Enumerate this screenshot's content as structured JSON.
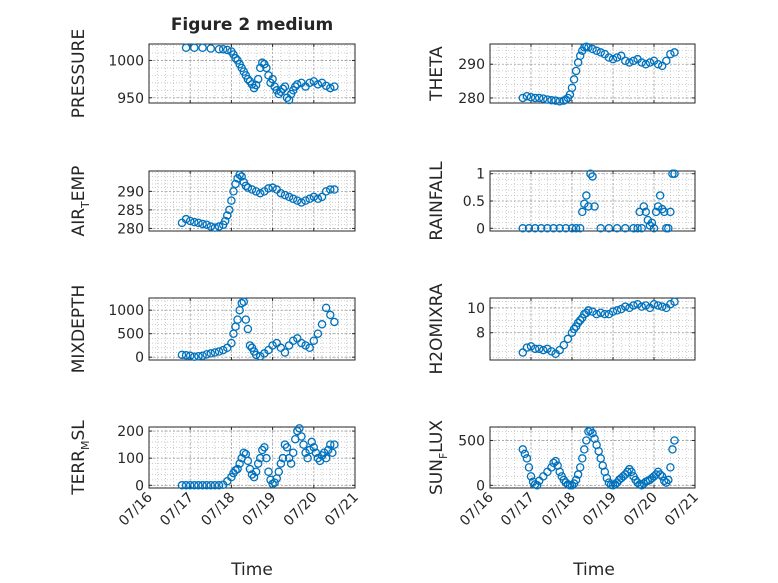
{
  "figure": {
    "title": "Figure 2 medium"
  },
  "theme": {
    "marker_color": "#0072BD",
    "axis_color": "#262626",
    "grid_color": "#b0b0b0"
  },
  "chart_data": [
    {
      "type": "scatter",
      "ylabel": "PRESSURE",
      "ylim": [
        943,
        1022
      ],
      "yticks": [
        950,
        1000
      ],
      "ytick_labels": [
        "950",
        "1000"
      ],
      "minor_grid_step": 10,
      "grid": true,
      "x": [
        16.9,
        17.1,
        17.3,
        17.5,
        17.7,
        17.8,
        17.9,
        18.0,
        18.05,
        18.1,
        18.15,
        18.2,
        18.25,
        18.3,
        18.35,
        18.4,
        18.45,
        18.5,
        18.55,
        18.6,
        18.65,
        18.7,
        18.75,
        18.8,
        18.85,
        18.9,
        18.95,
        19.0,
        19.05,
        19.1,
        19.15,
        19.2,
        19.25,
        19.3,
        19.35,
        19.4,
        19.45,
        19.5,
        19.55,
        19.6,
        19.7,
        19.8,
        19.9,
        20.0,
        20.1,
        20.2,
        20.3,
        20.4,
        20.5
      ],
      "y": [
        1017,
        1017,
        1017,
        1016,
        1015,
        1015,
        1014,
        1012,
        1008,
        1003,
        1000,
        995,
        990,
        985,
        980,
        975,
        972,
        968,
        963,
        967,
        975,
        990,
        997,
        995,
        990,
        980,
        970,
        975,
        965,
        960,
        955,
        958,
        962,
        965,
        950,
        947,
        955,
        960,
        965,
        968,
        970,
        965,
        970,
        972,
        968,
        970,
        966,
        963,
        965
      ]
    },
    {
      "type": "scatter",
      "ylabel": "THETA",
      "ylim": [
        278.5,
        296
      ],
      "yticks": [
        280,
        290
      ],
      "ytick_labels": [
        "280",
        "290"
      ],
      "minor_grid_step": 2,
      "grid": true,
      "x": [
        16.8,
        16.9,
        17.0,
        17.1,
        17.2,
        17.3,
        17.4,
        17.5,
        17.6,
        17.7,
        17.8,
        17.85,
        17.9,
        17.95,
        18.0,
        18.05,
        18.1,
        18.15,
        18.2,
        18.25,
        18.3,
        18.35,
        18.4,
        18.5,
        18.6,
        18.7,
        18.8,
        18.9,
        19.0,
        19.1,
        19.2,
        19.3,
        19.4,
        19.5,
        19.6,
        19.7,
        19.8,
        19.9,
        20.0,
        20.1,
        20.2,
        20.3,
        20.4,
        20.5
      ],
      "y": [
        280,
        280.5,
        280.2,
        280,
        280,
        279.8,
        279.5,
        279.3,
        279.2,
        279,
        279.2,
        279.5,
        280,
        281,
        283,
        285.5,
        288,
        290.5,
        292.5,
        294,
        295,
        295.2,
        295,
        294.5,
        294,
        293.5,
        293,
        292,
        291.5,
        292,
        292.5,
        291,
        290.5,
        291,
        291.5,
        290.5,
        290,
        290.5,
        291,
        290,
        289.5,
        291,
        293,
        293.5
      ]
    },
    {
      "type": "scatter",
      "ylabel": "AIR_T EMP",
      "ylabel_parts": {
        "main": "AIR",
        "sub": "T",
        "rest": "EMP"
      },
      "ylim": [
        279.3,
        295.5
      ],
      "yticks": [
        280,
        285,
        290
      ],
      "ytick_labels": [
        "280",
        "285",
        "290"
      ],
      "minor_grid_step": 1,
      "grid": true,
      "x": [
        16.8,
        16.9,
        17.0,
        17.1,
        17.2,
        17.3,
        17.4,
        17.5,
        17.6,
        17.7,
        17.8,
        17.85,
        17.9,
        17.95,
        18.0,
        18.05,
        18.1,
        18.15,
        18.2,
        18.25,
        18.3,
        18.35,
        18.4,
        18.5,
        18.6,
        18.7,
        18.8,
        18.9,
        19.0,
        19.1,
        19.2,
        19.3,
        19.4,
        19.5,
        19.6,
        19.7,
        19.8,
        19.9,
        20.0,
        20.1,
        20.2,
        20.3,
        20.4,
        20.5
      ],
      "y": [
        281.5,
        282.5,
        282,
        281.7,
        281.5,
        281.2,
        281,
        280.5,
        280.2,
        280.5,
        281,
        282,
        283.5,
        285,
        287.5,
        290,
        292,
        293.5,
        294.5,
        294,
        292.5,
        291.5,
        291,
        290.5,
        290,
        289.5,
        290,
        290.8,
        291,
        290.5,
        289.5,
        289,
        288.5,
        288,
        287.5,
        287,
        287.5,
        288,
        288.5,
        288,
        288.5,
        290,
        290.5,
        290.5
      ]
    },
    {
      "type": "scatter",
      "ylabel": "RAINFALL",
      "ylim": [
        -0.05,
        1.05
      ],
      "yticks": [
        0,
        0.5,
        1
      ],
      "ytick_labels": [
        "0",
        "0.5",
        "1"
      ],
      "minor_grid_step": 0.1,
      "grid": true,
      "x": [
        16.8,
        16.95,
        17.1,
        17.25,
        17.4,
        17.55,
        17.7,
        17.85,
        18.0,
        18.1,
        18.2,
        18.25,
        18.3,
        18.35,
        18.4,
        18.45,
        18.5,
        18.55,
        18.7,
        18.9,
        19.1,
        19.3,
        19.5,
        19.6,
        19.65,
        19.7,
        19.75,
        19.8,
        19.85,
        19.9,
        19.95,
        20.0,
        20.05,
        20.1,
        20.15,
        20.2,
        20.25,
        20.3,
        20.35,
        20.4,
        20.45,
        20.5
      ],
      "y": [
        0,
        0,
        0,
        0,
        0,
        0,
        0,
        0,
        0,
        0,
        0,
        0.3,
        0.45,
        0.6,
        0.4,
        1.0,
        0.95,
        0.4,
        0,
        0,
        0,
        0,
        0,
        0,
        0.3,
        0,
        0.4,
        0.3,
        0.15,
        0.05,
        0.1,
        0,
        0.3,
        0.4,
        0.6,
        0.35,
        0.3,
        0,
        0,
        0.3,
        1.0,
        1.0
      ]
    },
    {
      "type": "scatter",
      "ylabel": "MIXDEPTH",
      "ylim": [
        -60,
        1260
      ],
      "yticks": [
        0,
        500,
        1000
      ],
      "ytick_labels": [
        "0",
        "500",
        "1000"
      ],
      "minor_grid_step": 100,
      "grid": true,
      "x": [
        16.8,
        16.9,
        17.0,
        17.1,
        17.2,
        17.3,
        17.4,
        17.5,
        17.6,
        17.7,
        17.8,
        17.9,
        18.0,
        18.05,
        18.1,
        18.15,
        18.2,
        18.25,
        18.3,
        18.35,
        18.4,
        18.45,
        18.5,
        18.55,
        18.6,
        18.7,
        18.8,
        18.9,
        19.0,
        19.1,
        19.2,
        19.3,
        19.4,
        19.5,
        19.6,
        19.7,
        19.8,
        19.9,
        20.0,
        20.1,
        20.2,
        20.3,
        20.4,
        20.5
      ],
      "y": [
        50,
        40,
        30,
        10,
        20,
        30,
        60,
        80,
        100,
        120,
        150,
        200,
        300,
        500,
        650,
        800,
        1000,
        1150,
        1180,
        800,
        600,
        250,
        200,
        120,
        50,
        20,
        80,
        150,
        250,
        300,
        200,
        100,
        250,
        350,
        400,
        300,
        250,
        200,
        350,
        500,
        700,
        1050,
        900,
        750
      ]
    },
    {
      "type": "scatter",
      "ylabel": "H2OMIXRA",
      "ylim": [
        5.8,
        10.8
      ],
      "yticks": [
        8,
        10
      ],
      "ytick_labels": [
        "8",
        "10"
      ],
      "minor_grid_step": 0.5,
      "grid": true,
      "x": [
        16.8,
        16.9,
        17.0,
        17.1,
        17.2,
        17.3,
        17.4,
        17.5,
        17.6,
        17.7,
        17.8,
        17.9,
        18.0,
        18.05,
        18.1,
        18.15,
        18.2,
        18.25,
        18.3,
        18.35,
        18.4,
        18.5,
        18.6,
        18.7,
        18.8,
        18.9,
        19.0,
        19.1,
        19.2,
        19.3,
        19.4,
        19.5,
        19.6,
        19.7,
        19.8,
        19.9,
        20.0,
        20.1,
        20.2,
        20.3,
        20.4,
        20.5
      ],
      "y": [
        6.4,
        6.8,
        6.9,
        6.7,
        6.7,
        6.6,
        6.7,
        6.5,
        6.3,
        6.6,
        7.0,
        7.5,
        8.0,
        8.3,
        8.5,
        8.8,
        9.0,
        9.2,
        9.5,
        9.6,
        9.8,
        9.7,
        9.5,
        9.6,
        9.5,
        9.5,
        9.7,
        9.8,
        9.9,
        10.1,
        10.0,
        10.2,
        10.3,
        10.1,
        10.2,
        10.0,
        10.3,
        10.2,
        10.1,
        10.0,
        10.3,
        10.5
      ]
    },
    {
      "type": "scatter",
      "ylabel": "TERR_M SL",
      "ylabel_parts": {
        "main": "TERR",
        "sub": "M",
        "rest": "SL"
      },
      "ylim": [
        -10,
        215
      ],
      "yticks": [
        0,
        100,
        200
      ],
      "ytick_labels": [
        "0",
        "100",
        "200"
      ],
      "minor_grid_step": 20,
      "grid": true,
      "x": [
        16.8,
        16.9,
        17.0,
        17.1,
        17.2,
        17.3,
        17.4,
        17.5,
        17.6,
        17.7,
        17.8,
        17.9,
        18.0,
        18.05,
        18.1,
        18.15,
        18.2,
        18.25,
        18.3,
        18.35,
        18.4,
        18.45,
        18.5,
        18.55,
        18.6,
        18.65,
        18.7,
        18.75,
        18.8,
        18.85,
        18.9,
        18.95,
        19.0,
        19.05,
        19.1,
        19.15,
        19.2,
        19.25,
        19.3,
        19.35,
        19.4,
        19.45,
        19.5,
        19.55,
        19.6,
        19.65,
        19.7,
        19.75,
        19.8,
        19.85,
        19.9,
        19.95,
        20.0,
        20.05,
        20.1,
        20.15,
        20.2,
        20.25,
        20.3,
        20.35,
        20.4,
        20.45,
        20.5
      ],
      "y": [
        0,
        0,
        0,
        0,
        0,
        0,
        0,
        0,
        0,
        0,
        2,
        15,
        30,
        45,
        55,
        60,
        80,
        100,
        120,
        115,
        90,
        60,
        40,
        30,
        50,
        80,
        100,
        130,
        140,
        100,
        50,
        20,
        5,
        10,
        25,
        50,
        80,
        100,
        150,
        140,
        100,
        80,
        120,
        170,
        200,
        210,
        180,
        150,
        120,
        100,
        130,
        160,
        140,
        120,
        100,
        90,
        110,
        120,
        100,
        130,
        150,
        120,
        150
      ]
    },
    {
      "type": "scatter",
      "ylabel": "SUN_F LUX",
      "ylabel_parts": {
        "main": "SUN",
        "sub": "F",
        "rest": "LUX"
      },
      "ylim": [
        -30,
        650
      ],
      "yticks": [
        0,
        500
      ],
      "ytick_labels": [
        "0",
        "500"
      ],
      "minor_grid_step": 100,
      "grid": true,
      "x": [
        16.8,
        16.85,
        16.9,
        16.95,
        17.0,
        17.05,
        17.1,
        17.15,
        17.2,
        17.3,
        17.4,
        17.5,
        17.55,
        17.6,
        17.65,
        17.7,
        17.75,
        17.8,
        17.85,
        17.9,
        17.95,
        18.0,
        18.05,
        18.1,
        18.15,
        18.2,
        18.25,
        18.3,
        18.35,
        18.4,
        18.45,
        18.5,
        18.55,
        18.6,
        18.65,
        18.7,
        18.75,
        18.8,
        18.85,
        18.9,
        18.95,
        19.0,
        19.05,
        19.1,
        19.15,
        19.2,
        19.25,
        19.3,
        19.35,
        19.4,
        19.45,
        19.5,
        19.55,
        19.6,
        19.65,
        19.7,
        19.75,
        19.8,
        19.85,
        19.9,
        19.95,
        20.0,
        20.05,
        20.1,
        20.15,
        20.2,
        20.25,
        20.3,
        20.35,
        20.4,
        20.45,
        20.5
      ],
      "y": [
        400,
        350,
        300,
        200,
        100,
        40,
        10,
        0,
        50,
        100,
        150,
        200,
        250,
        270,
        220,
        150,
        100,
        60,
        30,
        10,
        0,
        0,
        20,
        60,
        120,
        200,
        300,
        400,
        500,
        600,
        610,
        580,
        520,
        450,
        380,
        300,
        220,
        150,
        80,
        30,
        5,
        0,
        10,
        30,
        60,
        80,
        100,
        120,
        150,
        180,
        150,
        100,
        60,
        30,
        10,
        0,
        20,
        40,
        50,
        60,
        80,
        100,
        120,
        150,
        120,
        100,
        50,
        30,
        60,
        200,
        400,
        500
      ]
    }
  ],
  "x_axis": {
    "xlim": [
      16,
      21
    ],
    "tick_values": [
      16,
      17,
      18,
      19,
      20,
      21
    ],
    "tick_labels": [
      "07/16",
      "07/17",
      "07/18",
      "07/19",
      "07/20",
      "07/21"
    ],
    "label": "Time"
  }
}
